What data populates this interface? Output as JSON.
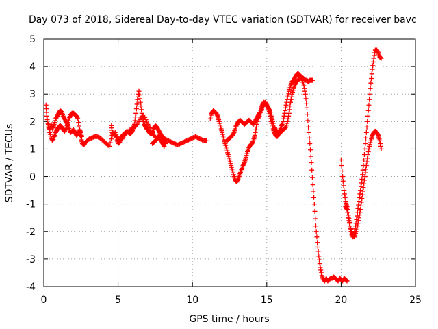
{
  "chart_data": {
    "type": "scatter",
    "title": "Day 073 of 2018, Sidereal Day-to-day VTEC variation (SDTVAR) for receiver bavc",
    "xlabel": "GPS time / hours",
    "ylabel": "SDTVAR / TECUs",
    "xlim": [
      0,
      25
    ],
    "ylim": [
      -4,
      5
    ],
    "grid": true,
    "marker": "+",
    "marker_color": "#ff0000",
    "xticks": [
      0,
      5,
      10,
      15,
      20,
      25
    ],
    "yticks": [
      -4,
      -3,
      -2,
      -1,
      0,
      1,
      2,
      3,
      4,
      5
    ],
    "series": [
      {
        "name": "SDTVAR",
        "segments": [
          {
            "x": [
              0.15,
              0.2,
              0.3,
              0.4,
              0.5,
              0.6,
              0.7,
              0.8,
              0.9,
              1.0,
              1.1,
              1.2,
              1.3,
              1.4,
              1.5,
              1.6,
              1.7,
              1.8,
              1.9,
              2.0,
              2.1,
              2.2,
              2.3,
              2.4,
              2.5,
              2.55
            ],
            "y": [
              2.6,
              2.2,
              1.8,
              1.7,
              1.9,
              1.7,
              1.9,
              2.1,
              2.2,
              2.3,
              2.4,
              2.35,
              2.2,
              2.1,
              2.0,
              1.9,
              1.75,
              1.6,
              1.65,
              1.7,
              1.6,
              1.5,
              1.55,
              1.7,
              1.6,
              1.45
            ]
          },
          {
            "x": [
              0.3,
              0.4,
              0.5,
              0.6,
              0.7,
              0.8,
              0.9,
              1.0,
              1.1,
              1.2,
              1.3,
              1.4,
              1.5,
              1.6,
              1.7,
              1.8,
              1.9,
              2.0,
              2.1,
              2.2,
              2.3,
              2.4,
              2.5,
              2.6,
              2.7,
              2.8,
              3.0,
              3.2,
              3.4,
              3.6,
              3.8,
              4.0,
              4.2,
              4.4,
              4.6,
              4.8,
              5.0,
              5.2,
              5.4,
              5.6,
              5.8,
              6.0,
              6.2,
              6.4,
              6.6,
              6.8,
              7.0,
              7.2,
              7.4,
              7.6,
              7.8,
              8.0,
              8.2,
              8.4,
              8.6,
              8.8,
              9.0,
              9.2,
              9.4,
              9.6,
              9.8,
              10.0,
              10.2,
              10.4,
              10.6,
              10.8,
              10.95
            ],
            "y": [
              1.9,
              1.6,
              1.4,
              1.3,
              1.45,
              1.6,
              1.7,
              1.8,
              1.85,
              1.8,
              1.7,
              1.65,
              1.75,
              1.9,
              2.1,
              2.25,
              2.3,
              2.3,
              2.25,
              2.2,
              2.1,
              1.7,
              1.4,
              1.2,
              1.15,
              1.25,
              1.35,
              1.4,
              1.45,
              1.45,
              1.4,
              1.3,
              1.2,
              1.1,
              1.5,
              1.6,
              1.4,
              1.3,
              1.5,
              1.6,
              1.7,
              1.75,
              1.85,
              2.0,
              2.2,
              2.15,
              1.9,
              1.7,
              1.5,
              1.4,
              1.5,
              1.45,
              1.35,
              1.3,
              1.25,
              1.2,
              1.15,
              1.2,
              1.25,
              1.3,
              1.35,
              1.4,
              1.45,
              1.4,
              1.35,
              1.3,
              1.3
            ]
          },
          {
            "x": [
              4.55,
              4.6,
              4.7,
              4.8,
              4.9,
              5.0,
              5.1,
              5.2,
              5.3,
              5.4,
              5.5,
              5.6,
              5.7,
              5.8,
              5.9,
              6.0,
              6.1,
              6.2,
              6.3,
              6.4,
              6.5,
              6.6,
              6.7,
              6.8,
              6.9,
              7.0,
              7.1,
              7.2,
              7.3,
              7.4,
              7.5,
              7.6,
              7.7,
              7.8,
              7.9,
              8.0,
              8.1,
              8.2
            ],
            "y": [
              1.85,
              1.6,
              1.55,
              1.5,
              1.4,
              1.2,
              1.25,
              1.4,
              1.5,
              1.55,
              1.6,
              1.65,
              1.6,
              1.55,
              1.6,
              1.7,
              1.9,
              2.3,
              2.8,
              3.1,
              2.7,
              2.3,
              2.0,
              1.85,
              1.75,
              1.7,
              1.6,
              1.55,
              1.6,
              1.75,
              1.85,
              1.8,
              1.7,
              1.6,
              1.5,
              1.4,
              1.3,
              1.2
            ]
          },
          {
            "x": [
              7.3,
              7.4,
              7.5,
              7.6,
              7.7,
              7.8,
              7.9,
              8.0,
              8.1
            ],
            "y": [
              1.2,
              1.25,
              1.3,
              1.35,
              1.45,
              1.4,
              1.3,
              1.2,
              1.1
            ]
          },
          {
            "x": [
              11.2,
              11.3,
              11.4,
              11.5,
              11.6,
              11.7,
              11.8,
              11.9,
              12.0,
              12.1,
              12.2,
              12.3,
              12.4,
              12.5,
              12.6,
              12.7,
              12.8,
              12.9,
              13.0,
              13.1,
              13.2,
              13.3,
              13.4,
              13.5,
              13.6,
              13.7,
              13.8,
              13.9,
              14.0,
              14.1,
              14.2,
              14.3,
              14.4,
              14.5,
              14.6,
              14.7,
              14.8,
              14.9,
              15.0,
              15.1,
              15.2,
              15.3,
              15.4,
              15.5,
              15.6,
              15.7,
              15.8,
              15.9,
              16.0,
              16.1,
              16.2,
              16.3,
              16.4,
              16.5,
              16.6,
              16.7,
              16.8,
              16.9,
              17.0,
              17.1,
              17.2,
              17.3,
              17.4,
              17.5,
              17.6,
              17.7,
              17.8,
              17.9,
              18.0,
              18.1,
              18.2,
              18.3,
              18.4,
              18.5,
              18.6,
              18.7,
              18.8,
              18.9,
              19.0,
              19.1,
              19.2,
              19.3,
              19.4,
              19.5,
              19.6,
              19.7,
              19.8,
              19.9,
              20.0,
              20.1,
              20.2,
              20.3,
              20.4
            ],
            "y": [
              2.1,
              2.3,
              2.4,
              2.35,
              2.3,
              2.2,
              2.0,
              1.8,
              1.6,
              1.4,
              1.2,
              1.0,
              0.8,
              0.6,
              0.4,
              0.2,
              0.0,
              -0.15,
              -0.2,
              -0.05,
              0.1,
              0.25,
              0.4,
              0.5,
              0.7,
              0.9,
              1.05,
              1.15,
              1.2,
              1.3,
              1.5,
              1.8,
              2.1,
              2.2,
              2.4,
              2.6,
              2.7,
              2.65,
              2.6,
              2.5,
              2.3,
              2.0,
              1.8,
              1.6,
              1.5,
              1.45,
              1.55,
              1.7,
              1.85,
              2.0,
              2.3,
              2.6,
              2.9,
              3.1,
              3.3,
              3.45,
              3.5,
              3.6,
              3.7,
              3.75,
              3.7,
              3.6,
              3.5,
              3.3,
              3.0,
              2.5,
              1.8,
              1.2,
              0.5,
              -0.3,
              -1.0,
              -1.8,
              -2.4,
              -2.9,
              -3.3,
              -3.6,
              -3.75,
              -3.8,
              -3.7,
              -3.8,
              -3.75,
              -3.7,
              -3.7,
              -3.65,
              -3.7,
              -3.75,
              -3.8,
              -3.7,
              -3.75,
              -3.8,
              -3.7,
              -3.75,
              -3.8
            ]
          },
          {
            "x": [
              12.3,
              12.4,
              12.5,
              12.6,
              12.7,
              12.8,
              12.9,
              13.0,
              13.1,
              13.2,
              13.3,
              13.4,
              13.5,
              13.6,
              13.7,
              13.8,
              13.9,
              14.0,
              14.1,
              14.2,
              14.3,
              14.4,
              14.5,
              14.6,
              14.7,
              14.8,
              14.9,
              15.0,
              15.1,
              15.2,
              15.3,
              15.4,
              15.5,
              15.6,
              15.7,
              15.8,
              15.9,
              16.0,
              16.1,
              16.2,
              16.3,
              16.4,
              16.5,
              16.6,
              16.7,
              16.8,
              16.9,
              17.0,
              17.1,
              17.2,
              17.3,
              17.4,
              17.5,
              17.6,
              17.7,
              17.8,
              17.9,
              18.0,
              18.1
            ],
            "y": [
              1.3,
              1.35,
              1.4,
              1.45,
              1.5,
              1.6,
              1.8,
              1.9,
              2.0,
              2.05,
              2.0,
              1.95,
              1.9,
              1.95,
              2.0,
              2.05,
              2.0,
              1.95,
              1.9,
              2.0,
              2.1,
              2.2,
              2.3,
              2.35,
              2.5,
              2.65,
              2.7,
              2.6,
              2.5,
              2.4,
              2.2,
              2.0,
              1.8,
              1.7,
              1.6,
              1.55,
              1.6,
              1.65,
              1.7,
              1.75,
              1.8,
              2.0,
              2.3,
              2.7,
              3.0,
              3.2,
              3.35,
              3.45,
              3.5,
              3.55,
              3.6,
              3.6,
              3.55,
              3.5,
              3.5,
              3.45,
              3.5,
              3.5,
              3.5
            ]
          },
          {
            "x": [
              20.0,
              20.1,
              20.2,
              20.3,
              20.4,
              20.5,
              20.6,
              20.7,
              20.8,
              20.9,
              21.0,
              21.1,
              21.2,
              21.3,
              21.4,
              21.5,
              21.6,
              21.7,
              21.8,
              21.9,
              22.0,
              22.1,
              22.2,
              22.3,
              22.4,
              22.5,
              22.6,
              22.7
            ],
            "y": [
              0.6,
              0.0,
              -0.5,
              -0.9,
              -1.1,
              -1.4,
              -1.8,
              -2.1,
              -2.2,
              -2.0,
              -1.7,
              -1.3,
              -0.9,
              -0.5,
              -0.1,
              0.4,
              1.0,
              1.6,
              2.2,
              2.8,
              3.4,
              3.9,
              4.3,
              4.6,
              4.6,
              4.5,
              4.35,
              4.3
            ]
          },
          {
            "x": [
              20.3,
              20.4,
              20.5,
              20.6,
              20.7,
              20.8,
              20.9,
              21.0,
              21.1,
              21.2,
              21.3,
              21.4,
              21.5,
              21.6,
              21.7,
              21.8,
              21.9,
              22.0,
              22.1,
              22.2,
              22.3,
              22.4,
              22.5,
              22.6,
              22.7
            ],
            "y": [
              -1.1,
              -1.2,
              -1.5,
              -1.8,
              -2.0,
              -2.1,
              -2.2,
              -2.0,
              -1.8,
              -1.5,
              -1.2,
              -0.8,
              -0.4,
              0.0,
              0.4,
              0.8,
              1.1,
              1.3,
              1.5,
              1.6,
              1.65,
              1.6,
              1.5,
              1.3,
              1.0
            ]
          }
        ]
      }
    ]
  }
}
